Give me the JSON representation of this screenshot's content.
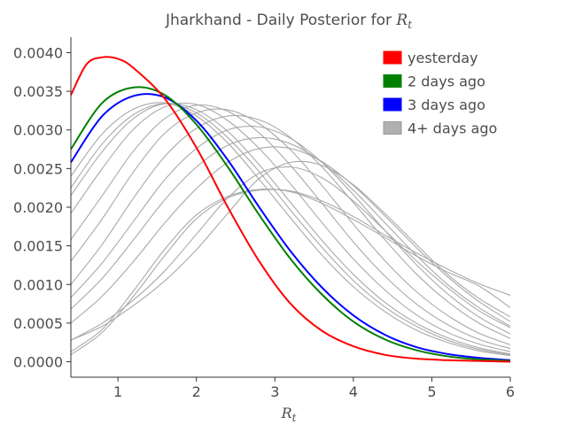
{
  "chart_data": {
    "type": "line",
    "title": "Jharkhand - Daily Posterior for ",
    "title_symbol": "R",
    "title_subscript": "t",
    "xlabel_symbol": "R",
    "xlabel_subscript": "t",
    "ylabel": "",
    "xlim": [
      0.4,
      6
    ],
    "ylim": [
      -0.0002,
      0.0042
    ],
    "x_ticks": [
      1,
      2,
      3,
      4,
      5,
      6
    ],
    "y_ticks": [
      0.0,
      0.0005,
      0.001,
      0.0015,
      0.002,
      0.0025,
      0.003,
      0.0035,
      0.004
    ],
    "x_tick_labels": [
      "1",
      "2",
      "3",
      "4",
      "5",
      "6"
    ],
    "y_tick_labels": [
      "0.0000",
      "0.0005",
      "0.0010",
      "0.0015",
      "0.0020",
      "0.0025",
      "0.0030",
      "0.0035",
      "0.0040"
    ],
    "grid": false,
    "legend": {
      "placement": "top-right",
      "entries": [
        {
          "label": "yesterday",
          "color": "#ff0000"
        },
        {
          "label": "2 days ago",
          "color": "#008000"
        },
        {
          "label": "3 days ago",
          "color": "#0000ff"
        },
        {
          "label": "4+ days ago",
          "color": "#b0b0b0"
        }
      ]
    },
    "series": [
      {
        "name": "4+ days ago",
        "color": "#a9a9a9",
        "x": [
          0.4,
          0.8,
          1.2,
          1.6,
          2.0,
          2.4,
          2.8,
          3.2,
          3.6,
          4.0,
          4.4,
          4.8,
          5.2,
          5.6,
          6.0
        ],
        "y": [
          9e-05,
          0.00038,
          0.00085,
          0.00138,
          0.00185,
          0.00212,
          0.00222,
          0.00221,
          0.00208,
          0.00188,
          0.00164,
          0.00141,
          0.0012,
          0.00101,
          0.00086
        ]
      },
      {
        "name": "4+ days ago",
        "color": "#a9a9a9",
        "x": [
          0.4,
          0.8,
          1.2,
          1.6,
          2.0,
          2.4,
          2.8,
          3.2,
          3.6,
          4.0,
          4.4,
          4.8,
          5.2,
          5.6,
          6.0
        ],
        "y": [
          0.00013,
          0.00042,
          0.00092,
          0.00146,
          0.0019,
          0.00214,
          0.00223,
          0.0022,
          0.00205,
          0.00184,
          0.00161,
          0.00137,
          0.00116,
          0.00098,
          0.0007
        ]
      },
      {
        "name": "4+ days ago",
        "color": "#a9a9a9",
        "x": [
          0.4,
          0.8,
          1.2,
          1.6,
          2.0,
          2.4,
          2.8,
          3.2,
          3.6,
          4.0,
          4.4,
          4.8,
          5.2,
          5.6,
          6.0
        ],
        "y": [
          0.00028,
          0.00046,
          0.00073,
          0.00105,
          0.00145,
          0.00192,
          0.00237,
          0.00258,
          0.00254,
          0.00229,
          0.00192,
          0.00152,
          0.00113,
          0.00082,
          0.00058
        ]
      },
      {
        "name": "4+ days ago",
        "color": "#a9a9a9",
        "x": [
          0.4,
          0.8,
          1.2,
          1.6,
          2.0,
          2.4,
          2.8,
          3.2,
          3.6,
          4.0,
          4.4,
          4.8,
          5.2,
          5.6,
          6.0
        ],
        "y": [
          0.00028,
          0.0005,
          0.0008,
          0.00118,
          0.00165,
          0.00212,
          0.00244,
          0.00252,
          0.00238,
          0.00208,
          0.0017,
          0.00131,
          0.00096,
          0.00066,
          0.00044
        ]
      },
      {
        "name": "4+ days ago",
        "color": "#a9a9a9",
        "x": [
          0.4,
          0.8,
          1.2,
          1.6,
          2.0,
          2.4,
          2.8,
          3.2,
          3.6,
          4.0,
          4.4,
          4.8,
          5.2,
          5.6,
          6.0
        ],
        "y": [
          0.0005,
          0.00085,
          0.0013,
          0.0018,
          0.00224,
          0.00258,
          0.00276,
          0.00276,
          0.00259,
          0.00228,
          0.00189,
          0.00148,
          0.0011,
          0.00078,
          0.00052
        ]
      },
      {
        "name": "4+ days ago",
        "color": "#a9a9a9",
        "x": [
          0.4,
          0.8,
          1.2,
          1.6,
          2.0,
          2.4,
          2.8,
          3.2,
          3.6,
          4.0,
          4.4,
          4.8,
          5.2,
          5.6,
          6.0
        ],
        "y": [
          0.00068,
          0.00108,
          0.00158,
          0.0021,
          0.00252,
          0.0028,
          0.0029,
          0.00282,
          0.00258,
          0.00222,
          0.0018,
          0.00138,
          0.001,
          0.0007,
          0.00046
        ]
      },
      {
        "name": "4+ days ago",
        "color": "#a9a9a9",
        "x": [
          0.4,
          0.8,
          1.2,
          1.6,
          2.0,
          2.4,
          2.8,
          3.2,
          3.6,
          4.0,
          4.4,
          4.8,
          5.2,
          5.6,
          6.0
        ],
        "y": [
          0.00083,
          0.00128,
          0.00182,
          0.00236,
          0.00276,
          0.003,
          0.00304,
          0.00289,
          0.00258,
          0.00216,
          0.0017,
          0.00126,
          0.00088,
          0.00058,
          0.00036
        ]
      },
      {
        "name": "4+ days ago",
        "color": "#a9a9a9",
        "x": [
          0.4,
          0.8,
          1.2,
          1.6,
          2.0,
          2.4,
          2.8,
          3.2,
          3.6,
          4.0,
          4.4,
          4.8,
          5.2,
          5.6,
          6.0
        ],
        "y": [
          0.001,
          0.00152,
          0.00212,
          0.00266,
          0.00302,
          0.00318,
          0.00313,
          0.0029,
          0.00252,
          0.00206,
          0.00158,
          0.00114,
          0.00078,
          0.0005,
          0.0003
        ]
      },
      {
        "name": "4+ days ago",
        "color": "#a9a9a9",
        "x": [
          0.4,
          0.8,
          1.2,
          1.6,
          2.0,
          2.4,
          2.8,
          3.2,
          3.6,
          4.0,
          4.4,
          4.8,
          5.2,
          5.6,
          6.0
        ],
        "y": [
          0.0013,
          0.00185,
          0.00246,
          0.00296,
          0.00322,
          0.00326,
          0.00308,
          0.00274,
          0.00228,
          0.00178,
          0.00131,
          0.00091,
          0.0006,
          0.00037,
          0.00022
        ]
      },
      {
        "name": "4+ days ago",
        "color": "#a9a9a9",
        "x": [
          0.4,
          0.8,
          1.2,
          1.6,
          2.0,
          2.4,
          2.8,
          3.2,
          3.6,
          4.0,
          4.4,
          4.8,
          5.2,
          5.6,
          6.0
        ],
        "y": [
          0.00158,
          0.00215,
          0.00273,
          0.00315,
          0.00332,
          0.00324,
          0.00296,
          0.00254,
          0.00205,
          0.00155,
          0.00111,
          0.00075,
          0.00048,
          0.00029,
          0.00017
        ]
      },
      {
        "name": "4+ days ago",
        "color": "#a9a9a9",
        "x": [
          0.4,
          0.8,
          1.2,
          1.6,
          2.0,
          2.4,
          2.8,
          3.2,
          3.6,
          4.0,
          4.4,
          4.8,
          5.2,
          5.6,
          6.0
        ],
        "y": [
          0.00192,
          0.0025,
          0.00301,
          0.0033,
          0.00333,
          0.00312,
          0.00276,
          0.0023,
          0.0018,
          0.00133,
          0.00093,
          0.00061,
          0.00038,
          0.00023,
          0.00013
        ]
      },
      {
        "name": "4+ days ago",
        "color": "#a9a9a9",
        "x": [
          0.4,
          0.8,
          1.2,
          1.6,
          2.0,
          2.4,
          2.8,
          3.2,
          3.6,
          4.0,
          4.4,
          4.8,
          5.2,
          5.6,
          6.0
        ],
        "y": [
          0.00215,
          0.00272,
          0.00315,
          0.00334,
          0.00326,
          0.00298,
          0.00255,
          0.00206,
          0.00157,
          0.00113,
          0.00077,
          0.0005,
          0.00031,
          0.00018,
          0.0001
        ]
      },
      {
        "name": "4+ days ago",
        "color": "#a9a9a9",
        "x": [
          0.4,
          0.8,
          1.2,
          1.6,
          2.0,
          2.4,
          2.8,
          3.2,
          3.6,
          4.0,
          4.4,
          4.8,
          5.2,
          5.6,
          6.0
        ],
        "y": [
          0.00225,
          0.00282,
          0.0032,
          0.00334,
          0.00322,
          0.0029,
          0.00246,
          0.00196,
          0.00148,
          0.00105,
          0.00071,
          0.00046,
          0.00028,
          0.00016,
          9e-05
        ]
      },
      {
        "name": "4+ days ago",
        "color": "#a9a9a9",
        "x": [
          0.4,
          0.8,
          1.2,
          1.6,
          2.0,
          2.4,
          2.8,
          3.2,
          3.6,
          4.0,
          4.4,
          4.8,
          5.2,
          5.6,
          6.0
        ],
        "y": [
          0.0024,
          0.00295,
          0.00327,
          0.00335,
          0.00318,
          0.00283,
          0.00236,
          0.00186,
          0.00138,
          0.00097,
          0.00065,
          0.00041,
          0.00025,
          0.00014,
          8e-05
        ]
      },
      {
        "name": "3 days ago",
        "color": "#0000ff",
        "x": [
          0.4,
          0.8,
          1.2,
          1.6,
          2.0,
          2.4,
          2.8,
          3.2,
          3.6,
          4.0,
          4.4,
          4.8,
          5.2,
          5.6,
          6.0
        ],
        "y": [
          0.00258,
          0.00318,
          0.00344,
          0.00342,
          0.00312,
          0.00261,
          0.002,
          0.00143,
          0.00096,
          0.0006,
          0.00035,
          0.00019,
          0.0001,
          5e-05,
          2e-05
        ]
      },
      {
        "name": "2 days ago",
        "color": "#008000",
        "x": [
          0.4,
          0.8,
          1.2,
          1.6,
          2.0,
          2.4,
          2.8,
          3.2,
          3.6,
          4.0,
          4.4,
          4.8,
          5.2,
          5.6,
          6.0
        ],
        "y": [
          0.00275,
          0.00335,
          0.00355,
          0.00345,
          0.00307,
          0.00252,
          0.0019,
          0.00133,
          0.00087,
          0.00052,
          0.00029,
          0.00015,
          7e-05,
          3e-05,
          1e-05
        ]
      },
      {
        "name": "yesterday",
        "color": "#ff0000",
        "x": [
          0.4,
          0.6,
          0.8,
          1.0,
          1.2,
          1.6,
          2.0,
          2.4,
          2.8,
          3.2,
          3.6,
          4.0,
          4.4,
          4.8,
          5.2,
          5.6,
          6.0
        ],
        "y": [
          0.00345,
          0.00385,
          0.00394,
          0.00392,
          0.0038,
          0.0034,
          0.00277,
          0.002,
          0.0013,
          0.00075,
          0.0004,
          0.0002,
          9e-05,
          4e-05,
          2e-05,
          1e-05,
          0.0
        ]
      }
    ]
  }
}
